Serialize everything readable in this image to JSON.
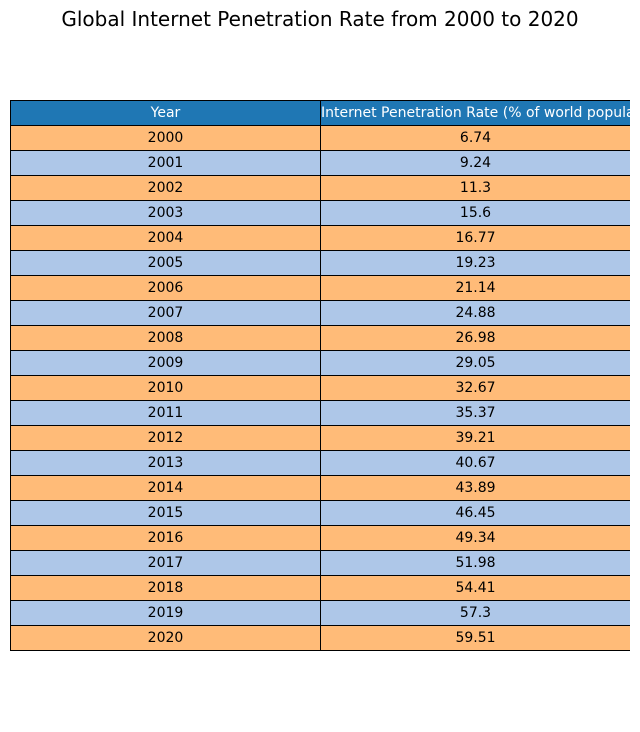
{
  "chart_data": {
    "type": "table",
    "title": "Global Internet Penetration Rate from 2000 to 2020",
    "columns": [
      "Year",
      "Internet Penetration Rate (% of world population)"
    ],
    "rows": [
      [
        "2000",
        "6.74"
      ],
      [
        "2001",
        "9.24"
      ],
      [
        "2002",
        "11.3"
      ],
      [
        "2003",
        "15.6"
      ],
      [
        "2004",
        "16.77"
      ],
      [
        "2005",
        "19.23"
      ],
      [
        "2006",
        "21.14"
      ],
      [
        "2007",
        "24.88"
      ],
      [
        "2008",
        "26.98"
      ],
      [
        "2009",
        "29.05"
      ],
      [
        "2010",
        "32.67"
      ],
      [
        "2011",
        "35.37"
      ],
      [
        "2012",
        "39.21"
      ],
      [
        "2013",
        "40.67"
      ],
      [
        "2014",
        "43.89"
      ],
      [
        "2015",
        "46.45"
      ],
      [
        "2016",
        "49.34"
      ],
      [
        "2017",
        "51.98"
      ],
      [
        "2018",
        "54.41"
      ],
      [
        "2019",
        "57.3"
      ],
      [
        "2020",
        "59.51"
      ]
    ],
    "colors": {
      "header": "#1f77b4",
      "row_even": "#ffbb78",
      "row_odd": "#aec7e8"
    }
  }
}
